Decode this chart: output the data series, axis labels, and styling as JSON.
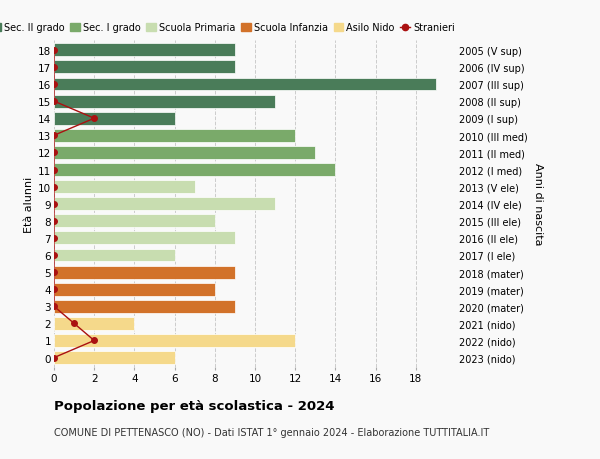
{
  "ages": [
    18,
    17,
    16,
    15,
    14,
    13,
    12,
    11,
    10,
    9,
    8,
    7,
    6,
    5,
    4,
    3,
    2,
    1,
    0
  ],
  "right_labels": [
    "2005 (V sup)",
    "2006 (IV sup)",
    "2007 (III sup)",
    "2008 (II sup)",
    "2009 (I sup)",
    "2010 (III med)",
    "2011 (II med)",
    "2012 (I med)",
    "2013 (V ele)",
    "2014 (IV ele)",
    "2015 (III ele)",
    "2016 (II ele)",
    "2017 (I ele)",
    "2018 (mater)",
    "2019 (mater)",
    "2020 (mater)",
    "2021 (nido)",
    "2022 (nido)",
    "2023 (nido)"
  ],
  "bar_values": [
    9,
    9,
    19,
    11,
    6,
    12,
    13,
    14,
    7,
    11,
    8,
    9,
    6,
    9,
    8,
    9,
    4,
    12,
    6
  ],
  "bar_colors": [
    "#4a7c59",
    "#4a7c59",
    "#4a7c59",
    "#4a7c59",
    "#4a7c59",
    "#7aaa6a",
    "#7aaa6a",
    "#7aaa6a",
    "#c8ddb0",
    "#c8ddb0",
    "#c8ddb0",
    "#c8ddb0",
    "#c8ddb0",
    "#d2722a",
    "#d2722a",
    "#d2722a",
    "#f5d98b",
    "#f5d98b",
    "#f5d98b"
  ],
  "stranieri_values": [
    0,
    0,
    0,
    0,
    2,
    0,
    0,
    0,
    0,
    0,
    0,
    0,
    0,
    0,
    0,
    0,
    1,
    2,
    0
  ],
  "stranieri_color": "#aa1111",
  "legend_labels": [
    "Sec. II grado",
    "Sec. I grado",
    "Scuola Primaria",
    "Scuola Infanzia",
    "Asilo Nido",
    "Stranieri"
  ],
  "legend_colors": [
    "#4a7c59",
    "#7aaa6a",
    "#c8ddb0",
    "#d2722a",
    "#f5d98b",
    "#aa1111"
  ],
  "ylabel_left": "Età alunni",
  "ylabel_right": "Anni di nascita",
  "title": "Popolazione per età scolastica - 2024",
  "subtitle": "COMUNE DI PETTENASCO (NO) - Dati ISTAT 1° gennaio 2024 - Elaborazione TUTTITALIA.IT",
  "xlim": [
    0,
    20
  ],
  "xticks": [
    0,
    2,
    4,
    6,
    8,
    10,
    12,
    14,
    16,
    18
  ],
  "bg_color": "#f9f9f9",
  "grid_color": "#cccccc"
}
